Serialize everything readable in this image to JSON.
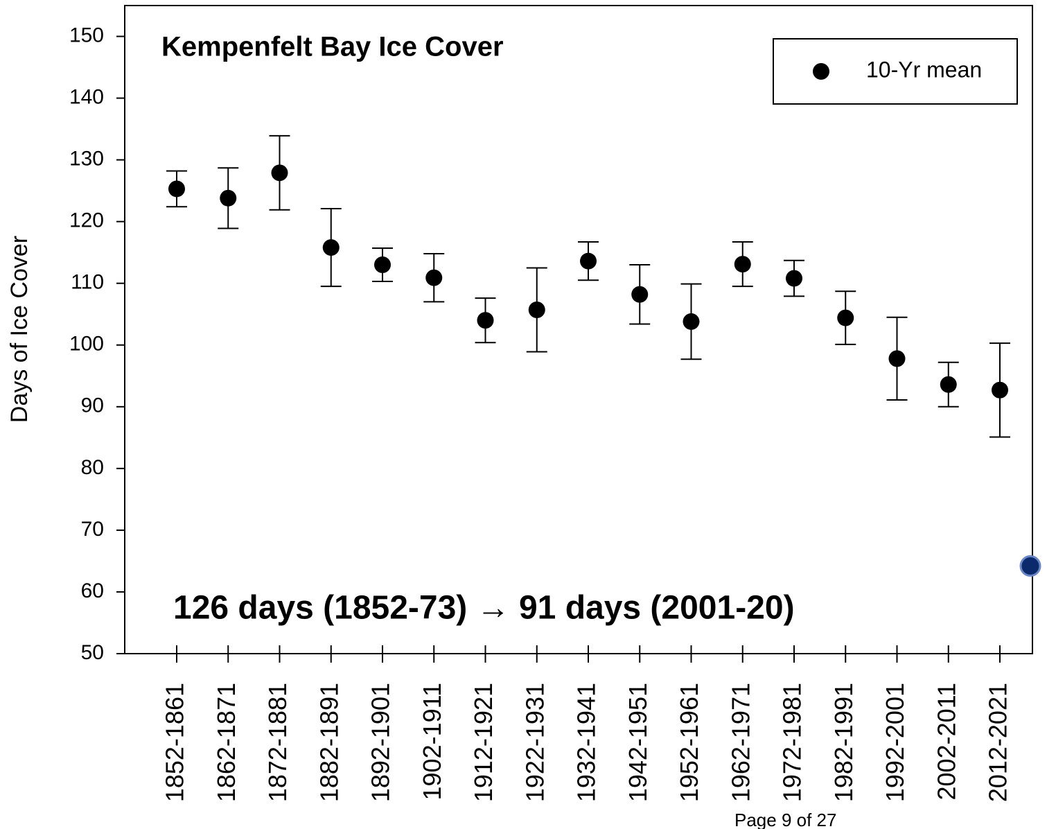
{
  "chart_data": {
    "type": "errorbar",
    "title": "Kempenfelt Bay Ice Cover",
    "ylabel": "Days of Ice Cover",
    "categories": [
      "1852-1861",
      "1862-1871",
      "1872-1881",
      "1882-1891",
      "1892-1901",
      "1902-1911",
      "1912-1921",
      "1922-1931",
      "1932-1941",
      "1942-1951",
      "1952-1961",
      "1962-1971",
      "1972-1981",
      "1982-1991",
      "1992-2001",
      "2002-2011",
      "2012-2021"
    ],
    "series": [
      {
        "name": "10-Yr mean",
        "color": "#000000",
        "values": [
          125.3,
          123.8,
          127.9,
          115.8,
          113.0,
          110.9,
          104.0,
          105.7,
          113.6,
          108.2,
          103.8,
          113.1,
          110.8,
          104.4,
          97.8,
          93.6,
          92.7
        ],
        "errors": [
          2.9,
          4.9,
          6.0,
          6.3,
          2.7,
          3.9,
          3.6,
          6.8,
          3.1,
          4.8,
          6.1,
          3.6,
          2.9,
          4.3,
          6.7,
          3.6,
          7.6
        ]
      }
    ],
    "extra_point": {
      "value": 64.2,
      "color": "#0b2a6b"
    },
    "ylim": [
      50,
      155
    ],
    "yticks": [
      50,
      60,
      70,
      80,
      90,
      100,
      110,
      120,
      130,
      140,
      150
    ],
    "legend": "upper right",
    "annotation": {
      "text": "126 days (1852-73) → 91 days (2001-20)",
      "color": "#00857a"
    },
    "footer": "Page 9 of 27"
  }
}
